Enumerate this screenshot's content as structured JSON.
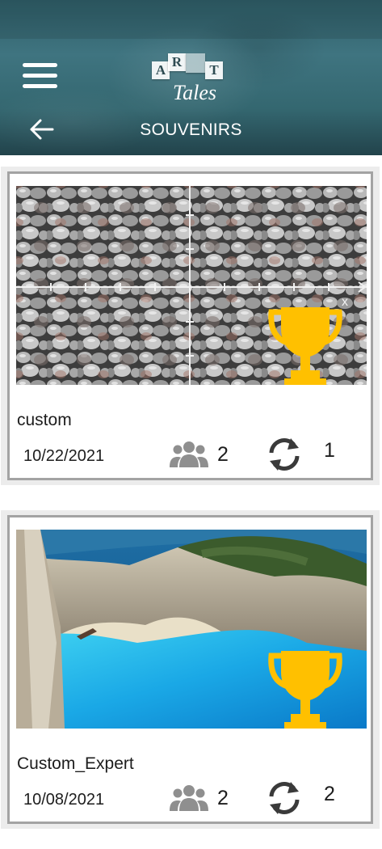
{
  "header": {
    "logo": {
      "tiles": [
        "A",
        "R",
        "T",
        "T"
      ],
      "word": "Tales"
    },
    "title": "SOUVENIRS",
    "menu_icon": "hamburger-icon",
    "back_icon": "arrow-left-icon"
  },
  "colors": {
    "header_bg": "#3a6d78",
    "trophy": "#ffc000",
    "icon_gray": "#8f8f8f",
    "card_border": "#a3a3a3"
  },
  "cards": [
    {
      "name": "custom",
      "date": "10/22/2021",
      "players": "2",
      "rounds": "1",
      "image": "gravel-stones-with-crosshair-axes",
      "axis_label": "x",
      "trophy_icon": "trophy-icon",
      "players_icon": "group-users-icon",
      "rounds_icon": "refresh-cycle-icon"
    },
    {
      "name": "Custom_Expert",
      "date": "10/08/2021",
      "players": "2",
      "rounds": "2",
      "image": "navagio-beach-cliff-bay",
      "trophy_icon": "trophy-icon",
      "players_icon": "group-users-icon",
      "rounds_icon": "refresh-cycle-icon"
    }
  ]
}
